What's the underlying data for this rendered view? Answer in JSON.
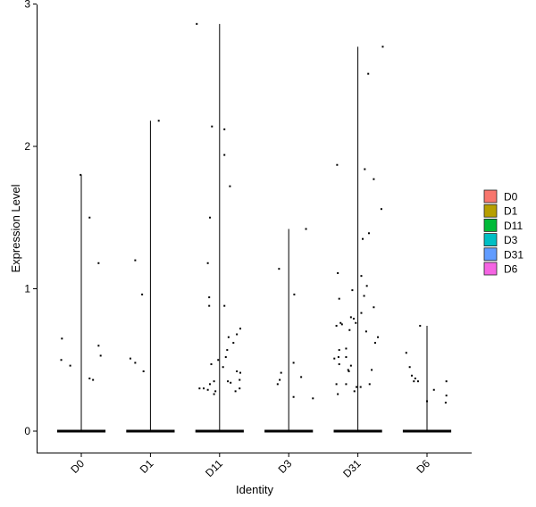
{
  "chart_data": {
    "type": "violin",
    "title": "",
    "xlabel": "Identity",
    "ylabel": "Expression Level",
    "ylim": [
      -0.15,
      3.0
    ],
    "yticks": [
      "0",
      "1",
      "2",
      "3"
    ],
    "categories": [
      "D0",
      "D1",
      "D11",
      "D3",
      "D31",
      "D6"
    ],
    "grid": false,
    "legend": {
      "placement": "right",
      "items": [
        {
          "label": "D0",
          "color": "#F8766D"
        },
        {
          "label": "D1",
          "color": "#B79F00"
        },
        {
          "label": "D11",
          "color": "#00BA38"
        },
        {
          "label": "D3",
          "color": "#00BFC4"
        },
        {
          "label": "D31",
          "color": "#619CFF"
        },
        {
          "label": "D6",
          "color": "#F564E3"
        }
      ]
    },
    "series": [
      {
        "category": "D0",
        "max": 1.8,
        "points": [
          [
            -0.28,
            0.65
          ],
          [
            -0.29,
            0.5
          ],
          [
            -0.16,
            0.46
          ],
          [
            0.12,
            1.5
          ],
          [
            0.25,
            1.18
          ],
          [
            0.25,
            0.6
          ],
          [
            0.28,
            0.53
          ],
          [
            0.12,
            0.37
          ],
          [
            0.17,
            0.36
          ],
          [
            -0.01,
            1.8
          ]
        ]
      },
      {
        "category": "D1",
        "max": 2.18,
        "points": [
          [
            -0.22,
            1.2
          ],
          [
            -0.29,
            0.51
          ],
          [
            -0.22,
            0.48
          ],
          [
            -0.12,
            0.96
          ],
          [
            -0.1,
            0.42
          ],
          [
            0.12,
            2.18
          ]
        ]
      },
      {
        "category": "D11",
        "max": 2.86,
        "points": [
          [
            -0.33,
            2.86
          ],
          [
            -0.11,
            2.14
          ],
          [
            -0.14,
            1.5
          ],
          [
            -0.17,
            1.18
          ],
          [
            -0.15,
            0.94
          ],
          [
            -0.15,
            0.88
          ],
          [
            0.07,
            2.12
          ],
          [
            0.07,
            1.94
          ],
          [
            0.07,
            0.88
          ],
          [
            0.15,
            1.72
          ],
          [
            0.13,
            0.66
          ],
          [
            0.3,
            0.72
          ],
          [
            0.25,
            0.68
          ],
          [
            0.2,
            0.62
          ],
          [
            0.11,
            0.57
          ],
          [
            0.09,
            0.52
          ],
          [
            -0.12,
            0.47
          ],
          [
            -0.02,
            0.5
          ],
          [
            0.05,
            0.45
          ],
          [
            -0.29,
            0.3
          ],
          [
            -0.23,
            0.3
          ],
          [
            -0.17,
            0.29
          ],
          [
            -0.14,
            0.33
          ],
          [
            -0.08,
            0.35
          ],
          [
            -0.06,
            0.28
          ],
          [
            -0.08,
            0.26
          ],
          [
            0.12,
            0.35
          ],
          [
            0.16,
            0.34
          ],
          [
            0.23,
            0.28
          ],
          [
            0.29,
            0.3
          ],
          [
            0.25,
            0.42
          ],
          [
            0.3,
            0.41
          ],
          [
            0.29,
            0.36
          ]
        ]
      },
      {
        "category": "D3",
        "max": 1.42,
        "points": [
          [
            -0.14,
            1.14
          ],
          [
            0.25,
            1.42
          ],
          [
            -0.11,
            0.41
          ],
          [
            -0.13,
            0.36
          ],
          [
            -0.16,
            0.33
          ],
          [
            0.08,
            0.96
          ],
          [
            0.07,
            0.48
          ],
          [
            0.07,
            0.24
          ],
          [
            0.18,
            0.38
          ],
          [
            0.35,
            0.23
          ]
        ]
      },
      {
        "category": "D31",
        "max": 2.7,
        "points": [
          [
            0.36,
            2.7
          ],
          [
            0.15,
            2.51
          ],
          [
            0.1,
            1.84
          ],
          [
            -0.3,
            1.87
          ],
          [
            0.23,
            1.77
          ],
          [
            0.34,
            1.56
          ],
          [
            0.16,
            1.39
          ],
          [
            0.07,
            1.35
          ],
          [
            -0.29,
            1.11
          ],
          [
            0.05,
            1.09
          ],
          [
            -0.27,
            0.93
          ],
          [
            0.13,
            1.02
          ],
          [
            -0.08,
            0.99
          ],
          [
            0.09,
            0.95
          ],
          [
            0.05,
            0.83
          ],
          [
            0.23,
            0.87
          ],
          [
            -0.1,
            0.8
          ],
          [
            -0.06,
            0.79
          ],
          [
            -0.03,
            0.76
          ],
          [
            -0.12,
            0.71
          ],
          [
            0.12,
            0.7
          ],
          [
            -0.25,
            0.76
          ],
          [
            -0.23,
            0.75
          ],
          [
            -0.31,
            0.74
          ],
          [
            -0.34,
            0.51
          ],
          [
            -0.28,
            0.52
          ],
          [
            -0.17,
            0.58
          ],
          [
            -0.17,
            0.52
          ],
          [
            -0.27,
            0.57
          ],
          [
            -0.27,
            0.47
          ],
          [
            -0.14,
            0.43
          ],
          [
            -0.13,
            0.42
          ],
          [
            -0.1,
            0.46
          ],
          [
            -0.31,
            0.33
          ],
          [
            -0.29,
            0.26
          ],
          [
            -0.17,
            0.33
          ],
          [
            -0.05,
            0.28
          ],
          [
            -0.02,
            0.31
          ],
          [
            0.04,
            0.31
          ],
          [
            0.17,
            0.33
          ],
          [
            0.2,
            0.43
          ],
          [
            0.25,
            0.62
          ],
          [
            0.29,
            0.66
          ]
        ]
      },
      {
        "category": "D6",
        "max": 0.74,
        "points": [
          [
            -0.3,
            0.55
          ],
          [
            -0.25,
            0.45
          ],
          [
            -0.22,
            0.39
          ],
          [
            -0.19,
            0.35
          ],
          [
            -0.17,
            0.37
          ],
          [
            -0.13,
            0.35
          ],
          [
            -0.1,
            0.74
          ],
          [
            0.0,
            0.21
          ],
          [
            0.1,
            0.29
          ],
          [
            0.28,
            0.35
          ],
          [
            0.28,
            0.25
          ],
          [
            0.27,
            0.2
          ]
        ]
      }
    ],
    "zero_band_halfwidth": 0.35
  }
}
